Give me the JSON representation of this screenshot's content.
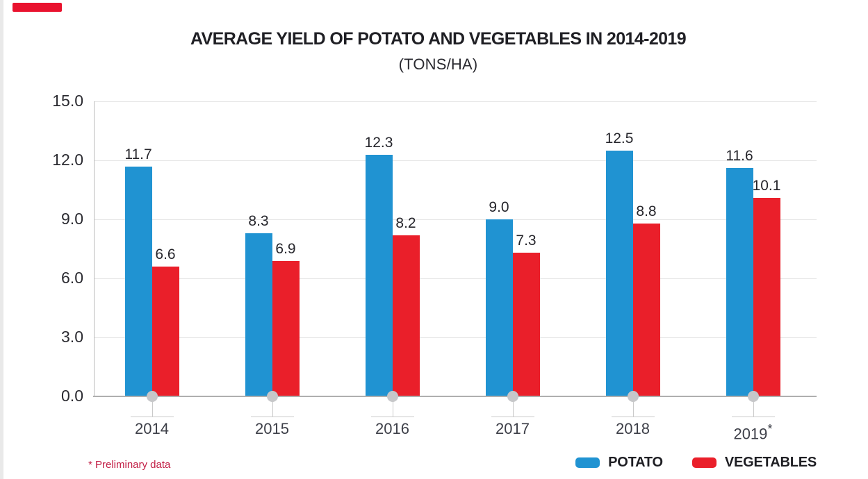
{
  "chart_data": {
    "type": "bar",
    "title": "AVERAGE YIELD OF POTATO AND VEGETABLES IN 2014-2019",
    "subtitle": "(TONS/HA)",
    "footnote": "* Preliminary data",
    "categories": [
      "2014",
      "2015",
      "2016",
      "2017",
      "2018",
      "2019"
    ],
    "category_superscripts": [
      "",
      "",
      "",
      "",
      "",
      "*"
    ],
    "series": [
      {
        "name": "POTATO",
        "color": "#2093D2",
        "values": [
          11.7,
          8.3,
          12.3,
          9.0,
          12.5,
          11.6
        ]
      },
      {
        "name": "VEGETABLES",
        "color": "#EA1F2A",
        "values": [
          6.6,
          6.9,
          8.2,
          7.3,
          8.8,
          10.1
        ]
      }
    ],
    "value_label_decimals": 1,
    "yticks": [
      0.0,
      3.0,
      6.0,
      9.0,
      12.0,
      15.0
    ],
    "ytick_label_decimals": 1,
    "ylim": [
      0,
      15
    ],
    "grid": true,
    "legend_position": "bottom-right",
    "colors": {
      "grid_line": "#E4E4E4",
      "axis_line": "#AFAFAF",
      "vertical_axis_line": "#BDBDBD",
      "category_marker": "#C6C7C9",
      "marker_stem": "#CACACA",
      "title_text": "#1F1F24",
      "subtitle_text": "#2A2A30",
      "ytick_text": "#2B2B31",
      "value_label_text": "#26262C",
      "year_text": "#3E4049",
      "footnote_text": "#C21E45",
      "legend_text": "#1E1E23",
      "accent_bar": "#E9122E",
      "page_edge_strip": "#E9E9E9",
      "background": "#FFFFFF"
    }
  }
}
